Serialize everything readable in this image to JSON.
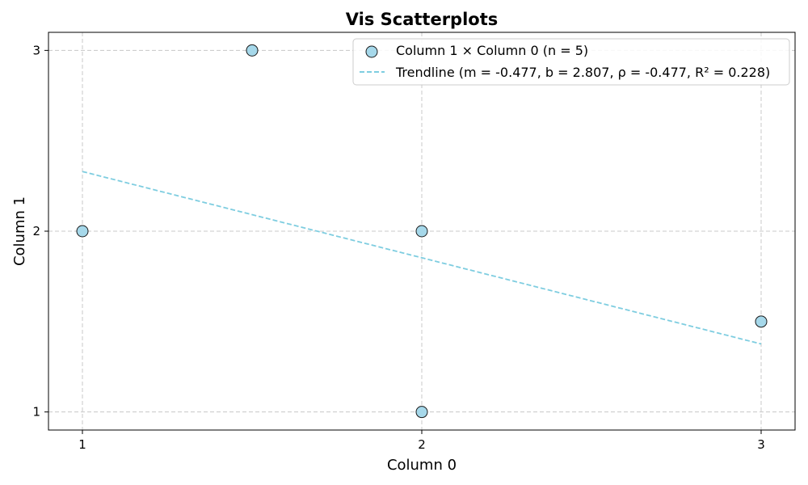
{
  "chart_data": {
    "type": "scatter",
    "title": "Vis Scatterplots",
    "xlabel": "Column 0",
    "ylabel": "Column 1",
    "xlim": [
      0.9,
      3.1
    ],
    "ylim": [
      0.9,
      3.1
    ],
    "xticks": [
      1,
      2,
      3
    ],
    "yticks": [
      1,
      2,
      3
    ],
    "grid": true,
    "legend_position": "top-right",
    "series": [
      {
        "name": "Column 1 × Column 0 (n = 5)",
        "kind": "scatter",
        "color": "#a6d8ea",
        "edge_color": "#1a1a1a",
        "points": [
          {
            "x": 1,
            "y": 2
          },
          {
            "x": 1.5,
            "y": 3
          },
          {
            "x": 2,
            "y": 2
          },
          {
            "x": 2,
            "y": 1
          },
          {
            "x": 3,
            "y": 1.5
          }
        ]
      },
      {
        "name": "Trendline (m = -0.477, b = 2.807, ρ = -0.477, R² = 0.228)",
        "kind": "line",
        "style": "dashed",
        "color": "#7ecde0",
        "slope": -0.477,
        "intercept": 2.807,
        "x_range": [
          1,
          3
        ]
      }
    ]
  }
}
